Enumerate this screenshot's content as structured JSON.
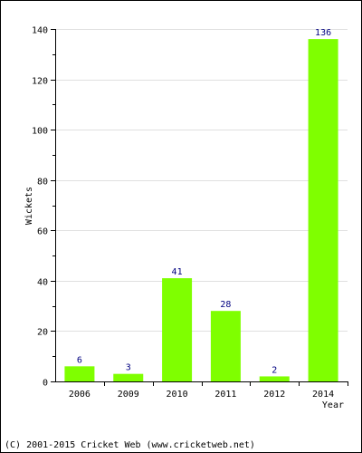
{
  "chart_data": {
    "type": "bar",
    "categories": [
      "2006",
      "2009",
      "2010",
      "2011",
      "2012",
      "2014"
    ],
    "values": [
      6,
      3,
      41,
      28,
      2,
      136
    ],
    "data_labels": [
      "6",
      "3",
      "41",
      "28",
      "2",
      "136"
    ],
    "xlabel": "Year",
    "ylabel": "Wickets",
    "ylim": [
      0,
      140
    ],
    "yticks": [
      0,
      20,
      40,
      60,
      80,
      100,
      120,
      140
    ],
    "grid": true,
    "colors": {
      "bar": "#7fff00",
      "data_label": "#000080",
      "grid": "#e0e0e0",
      "axis": "#000000"
    }
  },
  "footer": {
    "copyright": "(C) 2001-2015 Cricket Web (www.cricketweb.net)"
  }
}
